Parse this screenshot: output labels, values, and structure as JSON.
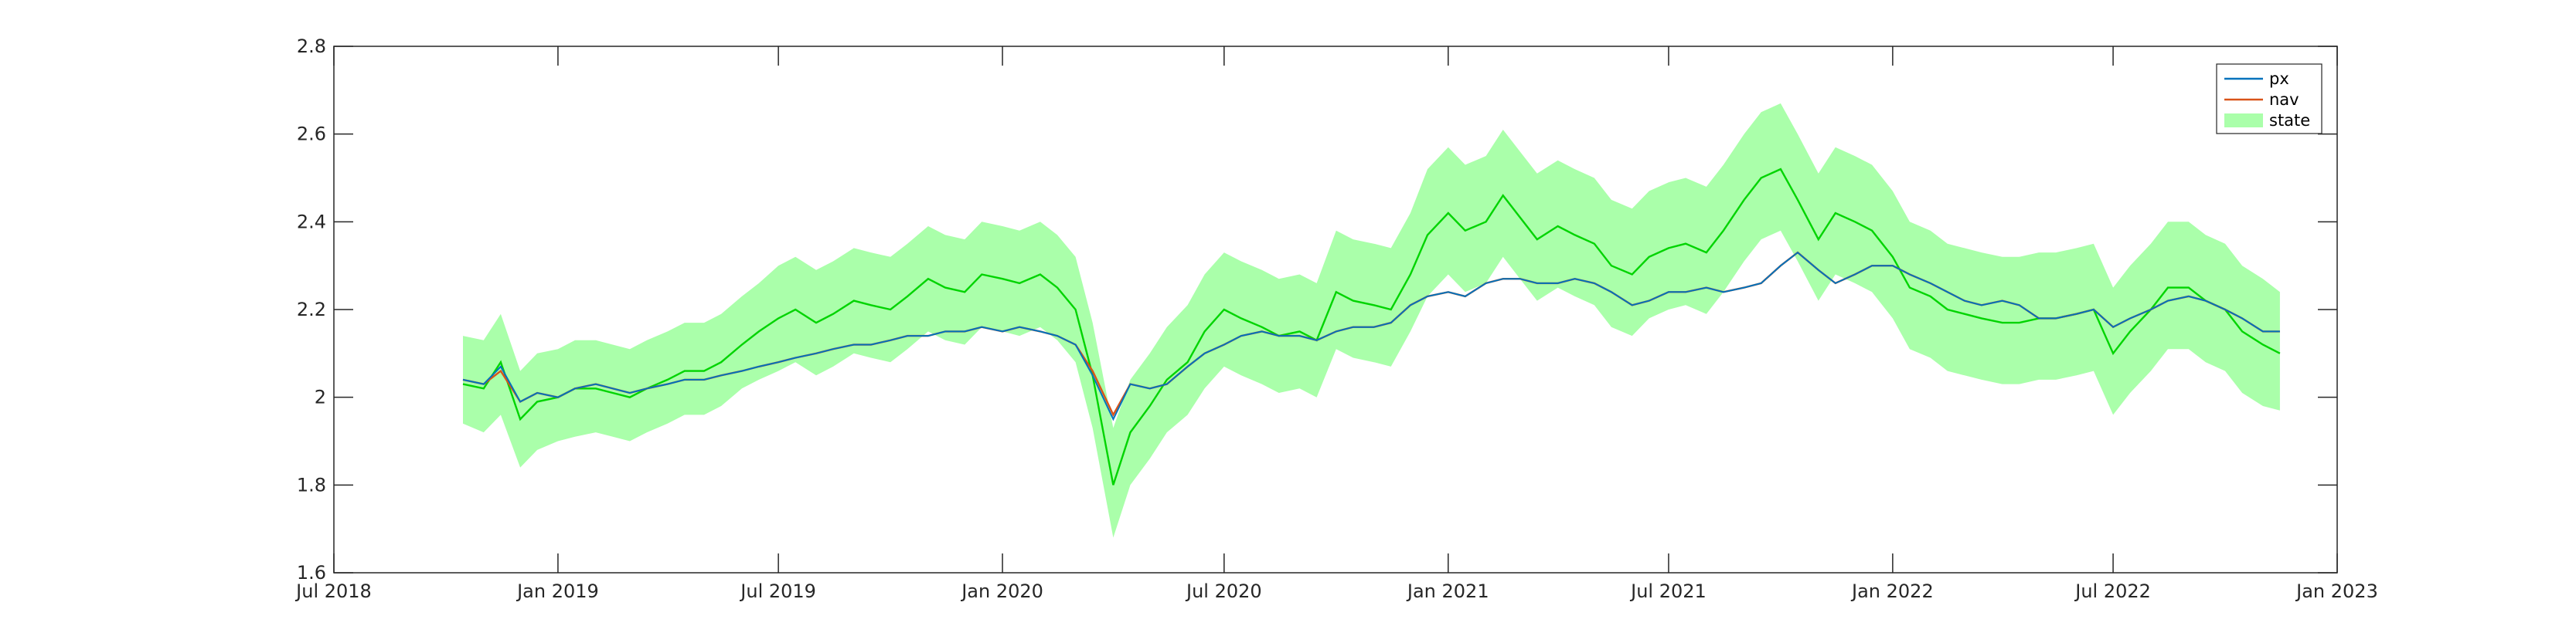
{
  "chart_data": {
    "type": "line",
    "title": "",
    "xlabel": "",
    "ylabel": "",
    "x_ticks": [
      "Jul 2018",
      "Jan 2019",
      "Jul 2019",
      "Jan 2020",
      "Jul 2020",
      "Jan 2021",
      "Jul 2021",
      "Jan 2022",
      "Jul 2022",
      "Jan 2023"
    ],
    "xlim": [
      "2018-07-01",
      "2023-01-01"
    ],
    "ylim": [
      1.6,
      2.8
    ],
    "y_ticks": [
      1.6,
      1.8,
      2.0,
      2.2,
      2.4,
      2.6,
      2.8
    ],
    "y_tick_labels": [
      "1.6",
      "1.8",
      "2",
      "2.2",
      "2.4",
      "2.6",
      "2.8"
    ],
    "grid": false,
    "legend_position": "top-right",
    "x": [
      "2018-10-15",
      "2018-11-01",
      "2018-11-15",
      "2018-12-01",
      "2018-12-15",
      "2019-01-01",
      "2019-01-15",
      "2019-02-01",
      "2019-02-15",
      "2019-03-01",
      "2019-03-15",
      "2019-04-01",
      "2019-04-15",
      "2019-05-01",
      "2019-05-15",
      "2019-06-01",
      "2019-06-15",
      "2019-07-01",
      "2019-07-15",
      "2019-08-01",
      "2019-08-15",
      "2019-09-01",
      "2019-09-15",
      "2019-10-01",
      "2019-10-15",
      "2019-11-01",
      "2019-11-15",
      "2019-12-01",
      "2019-12-15",
      "2020-01-01",
      "2020-01-15",
      "2020-02-01",
      "2020-02-15",
      "2020-03-01",
      "2020-03-15",
      "2020-04-01",
      "2020-04-15",
      "2020-05-01",
      "2020-05-15",
      "2020-06-01",
      "2020-06-15",
      "2020-07-01",
      "2020-07-15",
      "2020-08-01",
      "2020-08-15",
      "2020-09-01",
      "2020-09-15",
      "2020-10-01",
      "2020-10-15",
      "2020-11-01",
      "2020-11-15",
      "2020-12-01",
      "2020-12-15",
      "2021-01-01",
      "2021-01-15",
      "2021-02-01",
      "2021-02-15",
      "2021-03-01",
      "2021-03-15",
      "2021-04-01",
      "2021-04-15",
      "2021-05-01",
      "2021-05-15",
      "2021-06-01",
      "2021-06-15",
      "2021-07-01",
      "2021-07-15",
      "2021-08-01",
      "2021-08-15",
      "2021-09-01",
      "2021-09-15",
      "2021-10-01",
      "2021-10-15",
      "2021-11-01",
      "2021-11-15",
      "2021-12-01",
      "2021-12-15",
      "2022-01-01",
      "2022-01-15",
      "2022-02-01",
      "2022-02-15",
      "2022-03-01",
      "2022-03-15",
      "2022-04-01",
      "2022-04-15",
      "2022-05-01",
      "2022-05-15",
      "2022-06-01",
      "2022-06-15",
      "2022-07-01",
      "2022-07-15",
      "2022-08-01",
      "2022-08-15",
      "2022-09-01",
      "2022-09-15",
      "2022-10-01",
      "2022-10-15",
      "2022-11-01",
      "2022-11-15"
    ],
    "series": [
      {
        "name": "px",
        "color": "#0072BD",
        "values": [
          2.04,
          2.03,
          2.07,
          1.99,
          2.01,
          2.0,
          2.02,
          2.03,
          2.02,
          2.01,
          2.02,
          2.03,
          2.04,
          2.04,
          2.05,
          2.06,
          2.07,
          2.08,
          2.09,
          2.1,
          2.11,
          2.12,
          2.12,
          2.13,
          2.14,
          2.14,
          2.15,
          2.15,
          2.16,
          2.15,
          2.16,
          2.15,
          2.14,
          2.12,
          2.05,
          1.95,
          2.03,
          2.02,
          2.03,
          2.07,
          2.1,
          2.12,
          2.14,
          2.15,
          2.14,
          2.14,
          2.13,
          2.15,
          2.16,
          2.16,
          2.17,
          2.21,
          2.23,
          2.24,
          2.23,
          2.26,
          2.27,
          2.27,
          2.26,
          2.26,
          2.27,
          2.26,
          2.24,
          2.21,
          2.22,
          2.24,
          2.24,
          2.25,
          2.24,
          2.25,
          2.26,
          2.3,
          2.33,
          2.29,
          2.26,
          2.28,
          2.3,
          2.3,
          2.28,
          2.26,
          2.24,
          2.22,
          2.21,
          2.22,
          2.21,
          2.18,
          2.18,
          2.19,
          2.2,
          2.16,
          2.18,
          2.2,
          2.22,
          2.23,
          2.22,
          2.2,
          2.18,
          2.15,
          2.15
        ]
      },
      {
        "name": "nav",
        "color": "#D95319",
        "values": [
          2.04,
          2.03,
          2.06,
          1.99,
          2.01,
          2.0,
          2.02,
          2.03,
          2.02,
          2.01,
          2.02,
          2.03,
          2.04,
          2.04,
          2.05,
          2.06,
          2.07,
          2.08,
          2.09,
          2.1,
          2.11,
          2.12,
          2.12,
          2.13,
          2.14,
          2.14,
          2.15,
          2.15,
          2.16,
          2.15,
          2.16,
          2.15,
          2.14,
          2.12,
          2.06,
          1.96,
          2.03,
          2.02,
          2.03,
          2.07,
          2.1,
          2.12,
          2.14,
          2.15,
          2.14,
          2.14,
          2.13,
          2.15,
          2.16,
          2.16,
          2.17,
          2.21,
          2.23,
          2.24,
          2.23,
          2.26,
          2.27,
          2.27,
          2.26,
          2.26,
          2.27,
          2.26,
          2.24,
          2.21,
          2.22,
          2.24,
          2.24,
          2.25,
          2.24,
          2.25,
          2.26,
          2.3,
          2.33,
          2.29,
          2.26,
          2.28,
          2.3,
          2.3,
          2.28,
          2.26,
          2.24,
          2.22,
          2.21,
          2.22,
          2.21,
          2.18,
          2.18,
          2.19,
          2.2,
          2.16,
          2.18,
          2.2,
          2.22,
          2.23,
          2.22,
          2.2,
          2.18,
          2.15,
          2.15
        ]
      },
      {
        "name": "state",
        "color": "#00D400",
        "band_color": "#AAFFAA",
        "values": [
          2.03,
          2.02,
          2.08,
          1.95,
          1.99,
          2.0,
          2.02,
          2.02,
          2.01,
          2.0,
          2.02,
          2.04,
          2.06,
          2.06,
          2.08,
          2.12,
          2.15,
          2.18,
          2.2,
          2.17,
          2.19,
          2.22,
          2.21,
          2.2,
          2.23,
          2.27,
          2.25,
          2.24,
          2.28,
          2.27,
          2.26,
          2.28,
          2.25,
          2.2,
          2.05,
          1.8,
          1.92,
          1.98,
          2.04,
          2.08,
          2.15,
          2.2,
          2.18,
          2.16,
          2.14,
          2.15,
          2.13,
          2.24,
          2.22,
          2.21,
          2.2,
          2.28,
          2.37,
          2.42,
          2.38,
          2.4,
          2.46,
          2.41,
          2.36,
          2.39,
          2.37,
          2.35,
          2.3,
          2.28,
          2.32,
          2.34,
          2.35,
          2.33,
          2.38,
          2.45,
          2.5,
          2.52,
          2.45,
          2.36,
          2.42,
          2.4,
          2.38,
          2.32,
          2.25,
          2.23,
          2.2,
          2.19,
          2.18,
          2.17,
          2.17,
          2.18,
          2.18,
          2.19,
          2.2,
          2.1,
          2.15,
          2.2,
          2.25,
          2.25,
          2.22,
          2.2,
          2.15,
          2.12,
          2.1
        ],
        "lower": [
          1.94,
          1.92,
          1.96,
          1.84,
          1.88,
          1.9,
          1.91,
          1.92,
          1.91,
          1.9,
          1.92,
          1.94,
          1.96,
          1.96,
          1.98,
          2.02,
          2.04,
          2.06,
          2.08,
          2.05,
          2.07,
          2.1,
          2.09,
          2.08,
          2.11,
          2.15,
          2.13,
          2.12,
          2.16,
          2.15,
          2.14,
          2.16,
          2.13,
          2.08,
          1.93,
          1.68,
          1.8,
          1.86,
          1.92,
          1.96,
          2.02,
          2.07,
          2.05,
          2.03,
          2.01,
          2.02,
          2.0,
          2.11,
          2.09,
          2.08,
          2.07,
          2.15,
          2.23,
          2.28,
          2.24,
          2.26,
          2.32,
          2.27,
          2.22,
          2.25,
          2.23,
          2.21,
          2.16,
          2.14,
          2.18,
          2.2,
          2.21,
          2.19,
          2.24,
          2.31,
          2.36,
          2.38,
          2.31,
          2.22,
          2.28,
          2.26,
          2.24,
          2.18,
          2.11,
          2.09,
          2.06,
          2.05,
          2.04,
          2.03,
          2.03,
          2.04,
          2.04,
          2.05,
          2.06,
          1.96,
          2.01,
          2.06,
          2.11,
          2.11,
          2.08,
          2.06,
          2.01,
          1.98,
          1.97
        ],
        "upper": [
          2.14,
          2.13,
          2.19,
          2.06,
          2.1,
          2.11,
          2.13,
          2.13,
          2.12,
          2.11,
          2.13,
          2.15,
          2.17,
          2.17,
          2.19,
          2.23,
          2.26,
          2.3,
          2.32,
          2.29,
          2.31,
          2.34,
          2.33,
          2.32,
          2.35,
          2.39,
          2.37,
          2.36,
          2.4,
          2.39,
          2.38,
          2.4,
          2.37,
          2.32,
          2.17,
          1.93,
          2.04,
          2.1,
          2.16,
          2.21,
          2.28,
          2.33,
          2.31,
          2.29,
          2.27,
          2.28,
          2.26,
          2.38,
          2.36,
          2.35,
          2.34,
          2.42,
          2.52,
          2.57,
          2.53,
          2.55,
          2.61,
          2.56,
          2.51,
          2.54,
          2.52,
          2.5,
          2.45,
          2.43,
          2.47,
          2.49,
          2.5,
          2.48,
          2.53,
          2.6,
          2.65,
          2.67,
          2.6,
          2.51,
          2.57,
          2.55,
          2.53,
          2.47,
          2.4,
          2.38,
          2.35,
          2.34,
          2.33,
          2.32,
          2.32,
          2.33,
          2.33,
          2.34,
          2.35,
          2.25,
          2.3,
          2.35,
          2.4,
          2.4,
          2.37,
          2.35,
          2.3,
          2.27,
          2.24
        ]
      }
    ]
  }
}
